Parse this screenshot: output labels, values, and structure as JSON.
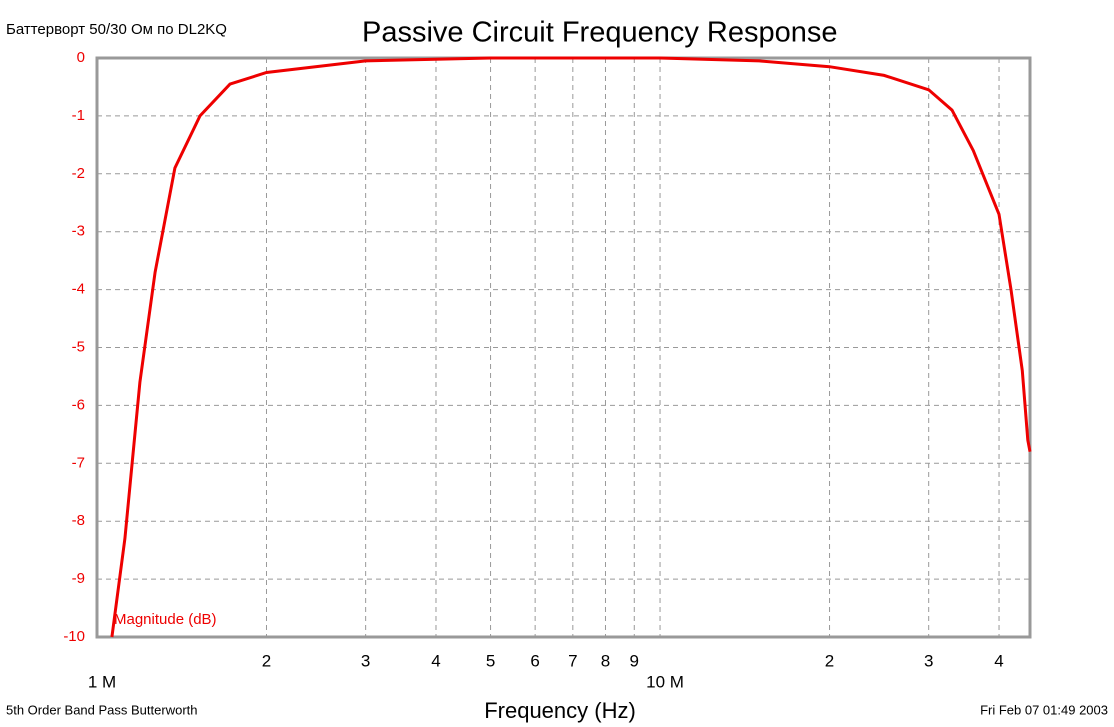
{
  "chart_data": {
    "type": "line",
    "title": "Passive Circuit Frequency Response",
    "subtitle": "Баттерворт 50/30 Ом по DL2KQ",
    "xlabel": "Frequency (Hz)",
    "ylabel": "Magnitude (dB)",
    "footer_left": "5th Order Band Pass Butterworth",
    "footer_right": "Fri Feb 07 01:49 2003",
    "xscale": "log",
    "grid": true,
    "xlim": [
      1000000,
      45400000
    ],
    "ylim": [
      -10,
      0
    ],
    "xticks": [
      {
        "value": 1000000,
        "label": "1 M"
      },
      {
        "value": 2000000,
        "label": "2"
      },
      {
        "value": 3000000,
        "label": "3"
      },
      {
        "value": 4000000,
        "label": "4"
      },
      {
        "value": 5000000,
        "label": "5"
      },
      {
        "value": 6000000,
        "label": "6"
      },
      {
        "value": 7000000,
        "label": "7"
      },
      {
        "value": 8000000,
        "label": "8"
      },
      {
        "value": 9000000,
        "label": "9"
      },
      {
        "value": 10000000,
        "label": "10 M"
      },
      {
        "value": 20000000,
        "label": "2"
      },
      {
        "value": 30000000,
        "label": "3"
      },
      {
        "value": 40000000,
        "label": "4"
      }
    ],
    "yticks": [
      0,
      -1,
      -2,
      -3,
      -4,
      -5,
      -6,
      -7,
      -8,
      -9,
      -10
    ],
    "series": [
      {
        "name": "Magnitude (dB)",
        "color": "#ee0000",
        "x": [
          1063000,
          1121000,
          1192000,
          1268000,
          1375000,
          1524000,
          1723000,
          2000000,
          3000000,
          5000000,
          10000000,
          15000000,
          20000000,
          25000000,
          30000000,
          33000000,
          36000000,
          40000000,
          42000000,
          44000000,
          45000000,
          45400000
        ],
        "values": [
          -10,
          -8.3,
          -5.6,
          -3.7,
          -1.9,
          -1.0,
          -0.45,
          -0.25,
          -0.05,
          0,
          0,
          -0.05,
          -0.15,
          -0.3,
          -0.55,
          -0.9,
          -1.6,
          -2.7,
          -4.0,
          -5.4,
          -6.6,
          -6.8
        ]
      }
    ]
  }
}
